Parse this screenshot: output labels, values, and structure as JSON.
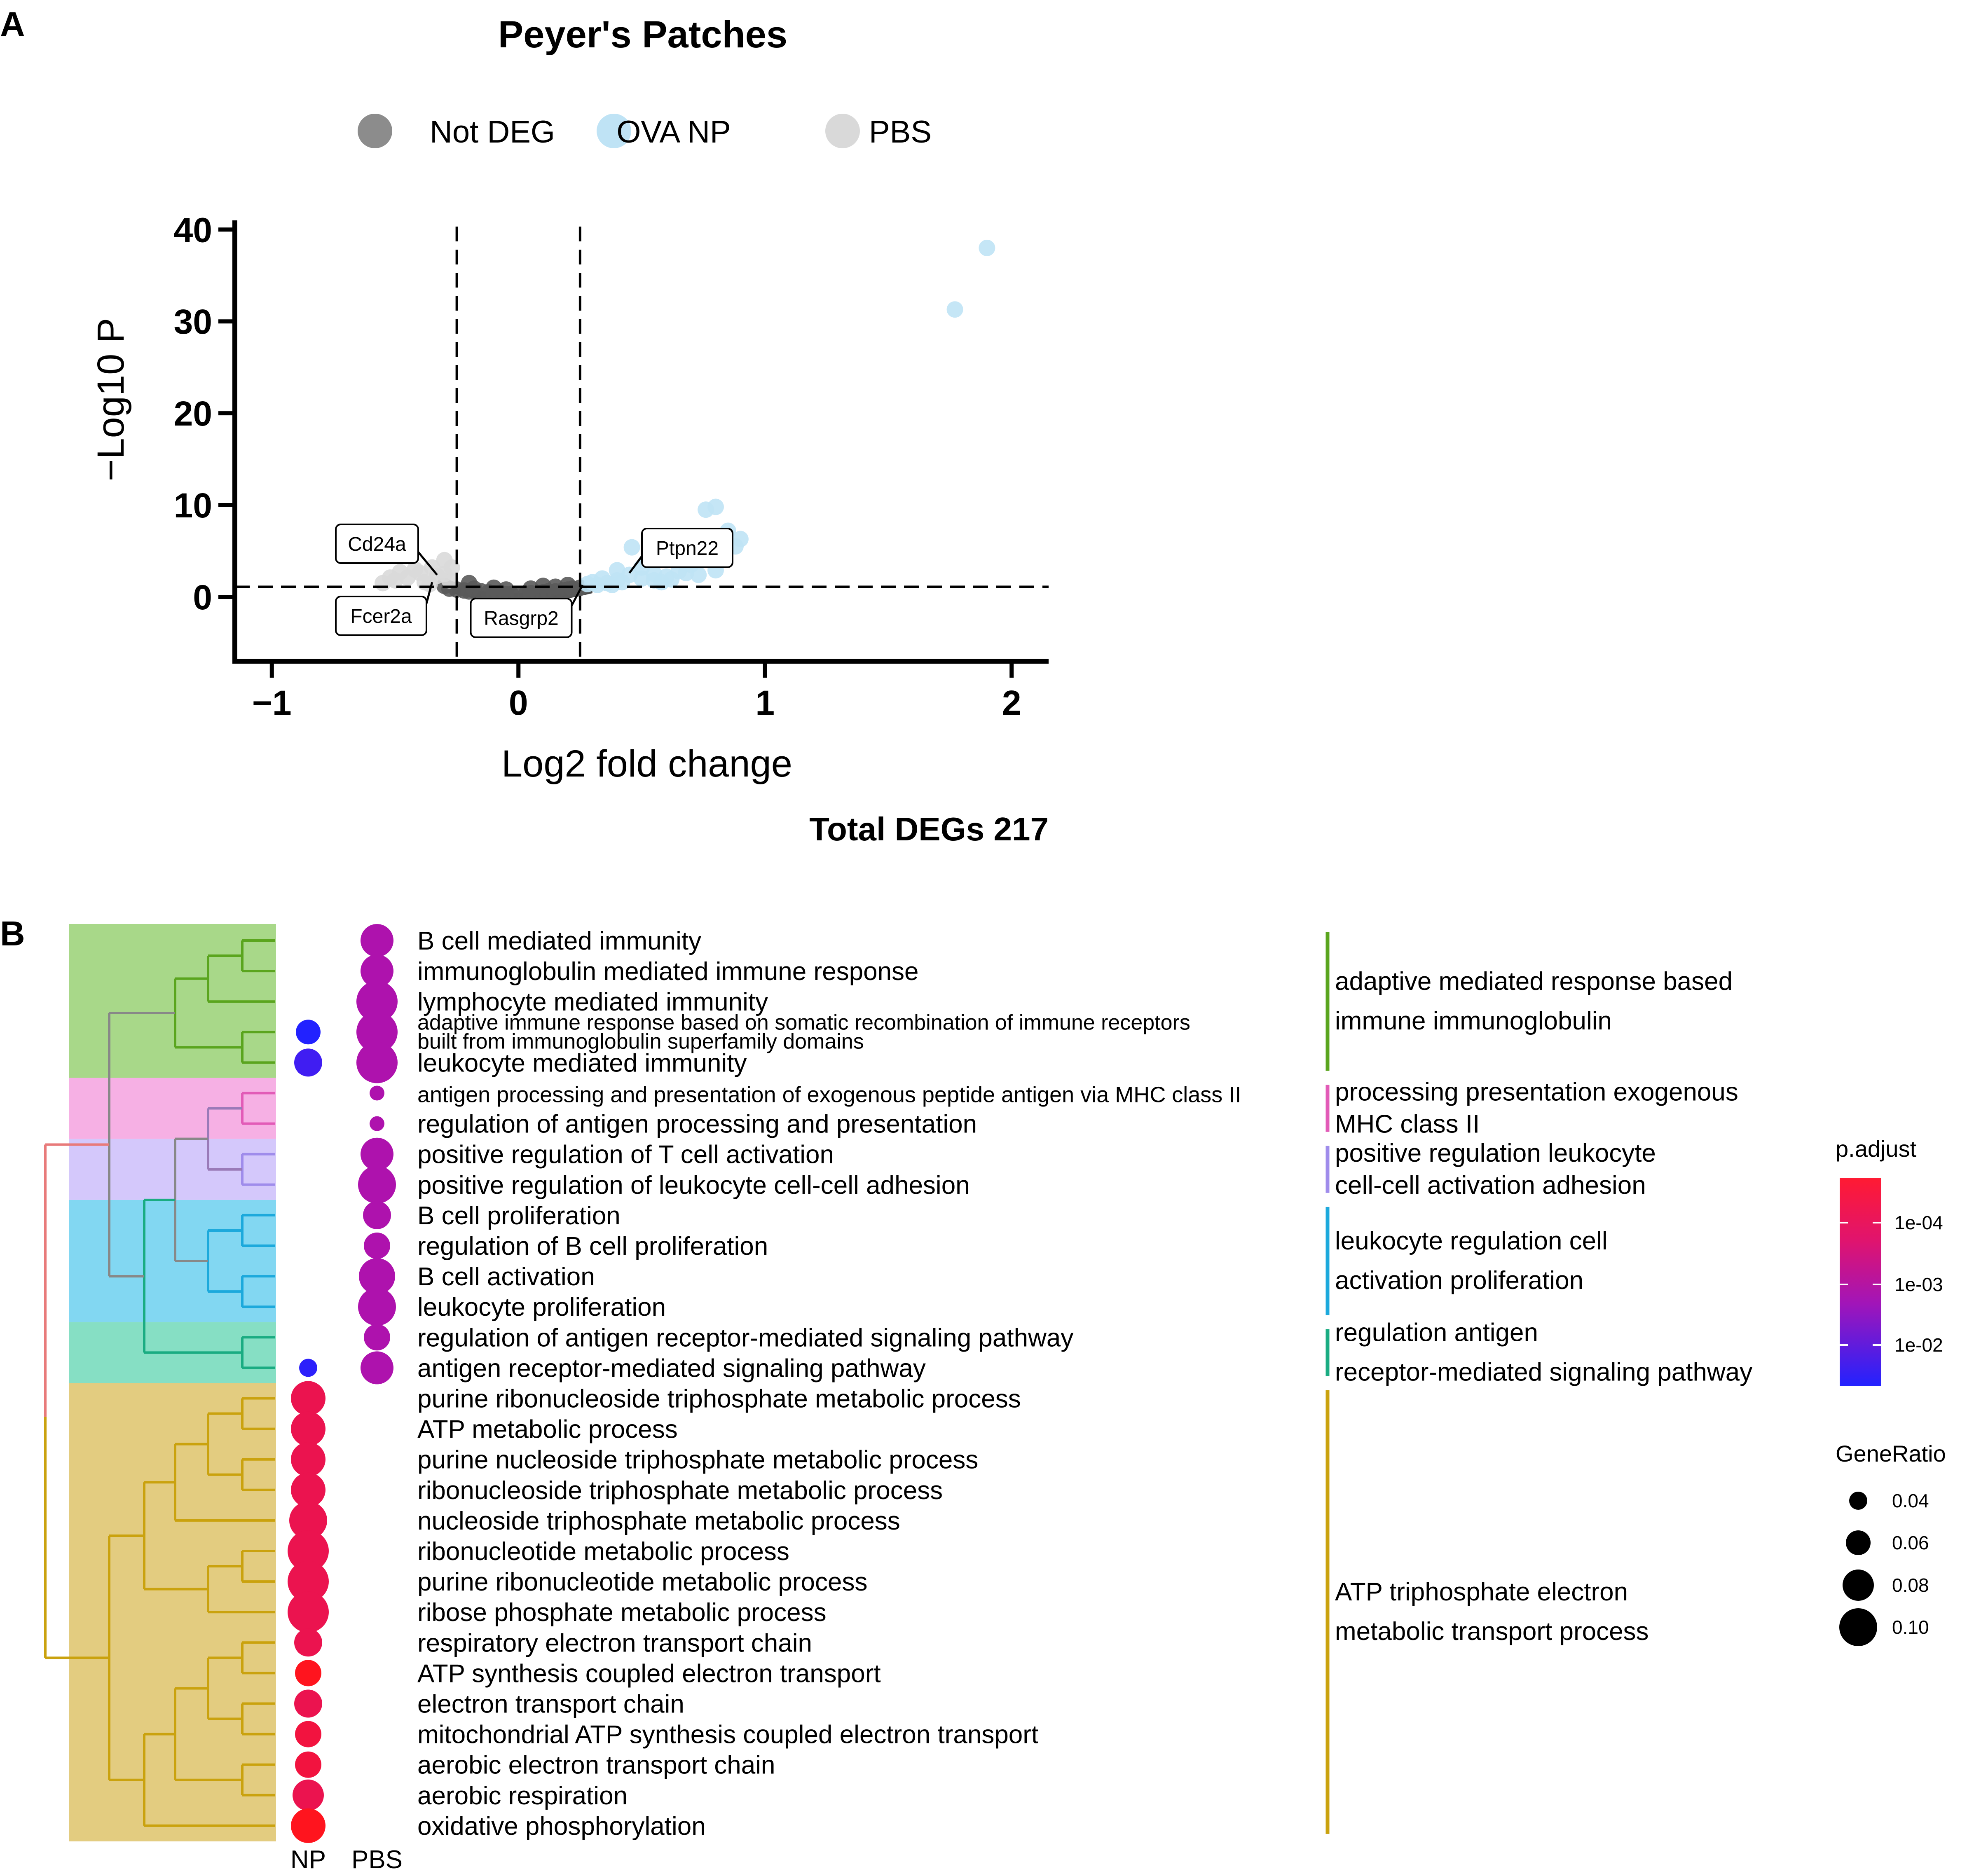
{
  "panel_a": {
    "label": "A",
    "title": "Peyer's Patches",
    "total_degs": "Total DEGs 217",
    "legend": [
      {
        "name": "Not DEG",
        "color": "#8c8c8c"
      },
      {
        "name": "OVA NP",
        "color": "#bfe3f5"
      },
      {
        "name": "PBS",
        "color": "#d9d9d9"
      }
    ]
  },
  "panel_b": {
    "label": "B",
    "colorbar_title": "p.adjust",
    "colorbar_ticks": [
      "1e-04",
      "1e-03",
      "1e-02"
    ],
    "size_title": "GeneRatio",
    "size_ticks": [
      "0.04",
      "0.06",
      "0.08",
      "0.10"
    ],
    "x_labels": [
      "NP",
      "PBS"
    ]
  },
  "chart_data": [
    {
      "type": "scatter",
      "title": "Peyer's Patches",
      "xlabel": "Log2 fold change",
      "ylabel": "−Log10 P",
      "xlim": [
        -1.15,
        2.15
      ],
      "ylim": [
        -7,
        41
      ],
      "xticks": [
        "−1",
        "0",
        "1",
        "2"
      ],
      "yticks": [
        "0",
        "10",
        "20",
        "30",
        "40"
      ],
      "thresholds": {
        "log2fc": [
          -0.25,
          0.25
        ],
        "neg_log10_p": 1.1
      },
      "series": [
        {
          "name": "Not DEG",
          "color": "#5a5a5a",
          "points": [
            [
              -0.3,
              1.2
            ],
            [
              -0.28,
              0.9
            ],
            [
              -0.25,
              0.8
            ],
            [
              -0.22,
              0.7
            ],
            [
              -0.2,
              0.6
            ],
            [
              -0.18,
              0.9
            ],
            [
              -0.15,
              0.6
            ],
            [
              -0.12,
              0.5
            ],
            [
              -0.1,
              0.4
            ],
            [
              -0.08,
              0.4
            ],
            [
              -0.05,
              0.3
            ],
            [
              -0.03,
              0.3
            ],
            [
              0,
              0.3
            ],
            [
              0.03,
              0.3
            ],
            [
              0.05,
              0.4
            ],
            [
              0.08,
              0.4
            ],
            [
              0.1,
              0.5
            ],
            [
              0.12,
              0.6
            ],
            [
              0.15,
              0.6
            ],
            [
              0.18,
              0.7
            ],
            [
              0.2,
              0.8
            ],
            [
              0.22,
              0.9
            ],
            [
              0.25,
              1.0
            ],
            [
              0.1,
              1.2
            ],
            [
              -0.1,
              1.0
            ],
            [
              0.05,
              0.9
            ],
            [
              -0.05,
              0.8
            ],
            [
              0.15,
              1.1
            ],
            [
              -0.2,
              1.5
            ],
            [
              0.2,
              1.3
            ]
          ]
        },
        {
          "name": "OVA NP",
          "color": "#bfe3f5",
          "points": [
            [
              1.9,
              38
            ],
            [
              1.77,
              31.3
            ],
            [
              0.9,
              6.3
            ],
            [
              0.85,
              7.2
            ],
            [
              0.8,
              9.8
            ],
            [
              0.76,
              9.5
            ],
            [
              0.88,
              5.5
            ],
            [
              0.7,
              3.5
            ],
            [
              0.65,
              2.8
            ],
            [
              0.6,
              2.2
            ],
            [
              0.55,
              2.5
            ],
            [
              0.5,
              2.0
            ],
            [
              0.45,
              2.4
            ],
            [
              0.4,
              1.8
            ],
            [
              0.36,
              1.5
            ],
            [
              0.32,
              1.3
            ],
            [
              0.3,
              1.6
            ],
            [
              0.28,
              1.4
            ],
            [
              0.46,
              5.4
            ],
            [
              0.5,
              3.2
            ],
            [
              0.4,
              2.9
            ],
            [
              0.42,
              1.6
            ],
            [
              0.58,
              1.6
            ],
            [
              0.62,
              1.9
            ],
            [
              0.68,
              2.6
            ],
            [
              0.73,
              2.4
            ],
            [
              0.8,
              2.9
            ],
            [
              0.34,
              2.0
            ],
            [
              0.38,
              1.3
            ],
            [
              0.55,
              1.8
            ]
          ]
        },
        {
          "name": "PBS",
          "color": "#d9d9d9",
          "points": [
            [
              -0.3,
              4.0
            ],
            [
              -0.35,
              3.2
            ],
            [
              -0.4,
              2.6
            ],
            [
              -0.45,
              2.1
            ],
            [
              -0.5,
              1.8
            ],
            [
              -0.55,
              1.5
            ],
            [
              -0.33,
              2.3
            ],
            [
              -0.38,
              1.6
            ],
            [
              -0.28,
              1.8
            ],
            [
              -0.48,
              2.7
            ],
            [
              -0.42,
              3.0
            ],
            [
              -0.3,
              2.5
            ],
            [
              -0.27,
              3.2
            ],
            [
              -0.52,
              2.1
            ],
            [
              -0.36,
              1.4
            ]
          ]
        }
      ],
      "annotations": [
        {
          "label": "Cd24a",
          "x": -0.33,
          "y": 2.4
        },
        {
          "label": "Fcer2a",
          "x": -0.35,
          "y": 1.6
        },
        {
          "label": "Rasgrp2",
          "x": 0.26,
          "y": 1.3
        },
        {
          "label": "Ptpn22",
          "x": 0.45,
          "y": 2.6
        }
      ]
    },
    {
      "type": "dot",
      "x": [
        "NP",
        "PBS"
      ],
      "size_legend_title": "GeneRatio",
      "color_legend_title": "p.adjust",
      "terms": [
        {
          "term": "B cell mediated immunity",
          "PBS": {
            "ratio": 0.085,
            "logp": 3.0
          }
        },
        {
          "term": "immunoglobulin mediated immune response",
          "PBS": {
            "ratio": 0.085,
            "logp": 3.0
          }
        },
        {
          "term": "lymphocyte mediated immunity",
          "PBS": {
            "ratio": 0.11,
            "logp": 3.0
          }
        },
        {
          "term": "adaptive immune response based on somatic recombination of immune receptors built from immunoglobulin superfamily domains",
          "NP": {
            "ratio": 0.06,
            "logp": 1.7
          },
          "PBS": {
            "ratio": 0.11,
            "logp": 3.0
          }
        },
        {
          "term": "leukocyte mediated immunity",
          "NP": {
            "ratio": 0.07,
            "logp": 2.0
          },
          "PBS": {
            "ratio": 0.11,
            "logp": 3.0
          }
        },
        {
          "term": "antigen processing and presentation of exogenous peptide antigen via MHC class II",
          "PBS": {
            "ratio": 0.03,
            "logp": 3.0
          }
        },
        {
          "term": "regulation of antigen processing and presentation",
          "PBS": {
            "ratio": 0.03,
            "logp": 3.0
          }
        },
        {
          "term": "positive regulation of T cell activation",
          "PBS": {
            "ratio": 0.085,
            "logp": 3.0
          }
        },
        {
          "term": "positive regulation of leukocyte cell-cell adhesion",
          "PBS": {
            "ratio": 0.1,
            "logp": 3.0
          }
        },
        {
          "term": "B cell proliferation",
          "PBS": {
            "ratio": 0.07,
            "logp": 3.0
          }
        },
        {
          "term": "regulation of B cell proliferation",
          "PBS": {
            "ratio": 0.065,
            "logp": 3.0
          }
        },
        {
          "term": "B cell activation",
          "PBS": {
            "ratio": 0.095,
            "logp": 3.0
          }
        },
        {
          "term": "leukocyte proliferation",
          "PBS": {
            "ratio": 0.1,
            "logp": 3.0
          }
        },
        {
          "term": "regulation of antigen receptor-mediated signaling pathway",
          "PBS": {
            "ratio": 0.065,
            "logp": 3.0
          }
        },
        {
          "term": "antigen receptor-mediated signaling pathway",
          "NP": {
            "ratio": 0.04,
            "logp": 1.8
          },
          "PBS": {
            "ratio": 0.085,
            "logp": 3.0
          }
        },
        {
          "term": "purine ribonucleoside triphosphate metabolic process",
          "NP": {
            "ratio": 0.09,
            "logp": 4.3
          }
        },
        {
          "term": "ATP metabolic process",
          "NP": {
            "ratio": 0.09,
            "logp": 4.3
          }
        },
        {
          "term": "purine nucleoside triphosphate metabolic process",
          "NP": {
            "ratio": 0.09,
            "logp": 4.3
          }
        },
        {
          "term": "ribonucleoside triphosphate metabolic process",
          "NP": {
            "ratio": 0.09,
            "logp": 4.3
          }
        },
        {
          "term": "nucleoside triphosphate metabolic process",
          "NP": {
            "ratio": 0.1,
            "logp": 4.3
          }
        },
        {
          "term": "ribonucleotide metabolic process",
          "NP": {
            "ratio": 0.11,
            "logp": 4.3
          }
        },
        {
          "term": "purine ribonucleotide metabolic process",
          "NP": {
            "ratio": 0.11,
            "logp": 4.3
          }
        },
        {
          "term": "ribose phosphate metabolic process",
          "NP": {
            "ratio": 0.11,
            "logp": 4.3
          }
        },
        {
          "term": "respiratory electron transport chain",
          "NP": {
            "ratio": 0.07,
            "logp": 4.3
          }
        },
        {
          "term": "ATP synthesis coupled electron transport",
          "NP": {
            "ratio": 0.065,
            "logp": 4.9
          }
        },
        {
          "term": "electron transport chain",
          "NP": {
            "ratio": 0.07,
            "logp": 4.3
          }
        },
        {
          "term": "mitochondrial ATP synthesis coupled electron transport",
          "NP": {
            "ratio": 0.065,
            "logp": 4.5
          }
        },
        {
          "term": "aerobic electron transport chain",
          "NP": {
            "ratio": 0.065,
            "logp": 4.5
          }
        },
        {
          "term": "aerobic respiration",
          "NP": {
            "ratio": 0.08,
            "logp": 4.3
          }
        },
        {
          "term": "oxidative phosphorylation",
          "NP": {
            "ratio": 0.09,
            "logp": 4.9
          }
        }
      ],
      "clusters": [
        {
          "lines": [
            "adaptive mediated response based",
            "immune immunoglobulin"
          ],
          "start": 0,
          "end": 4,
          "color": "#5aa51e",
          "bg": "#a8d889"
        },
        {
          "lines": [
            "processing presentation exogenous",
            "MHC class II"
          ],
          "start": 5,
          "end": 6,
          "color": "#e25bb7",
          "bg": "#f6b0e4"
        },
        {
          "lines": [
            "positive regulation leukocyte",
            "cell-cell activation adhesion"
          ],
          "start": 7,
          "end": 8,
          "color": "#9f8ceb",
          "bg": "#d4c8fb"
        },
        {
          "lines": [
            "leukocyte regulation cell",
            "activation proliferation"
          ],
          "start": 9,
          "end": 12,
          "color": "#1ca9dc",
          "bg": "#82d7f2"
        },
        {
          "lines": [
            "regulation antigen",
            "receptor-mediated signaling pathway"
          ],
          "start": 13,
          "end": 14,
          "color": "#1aac82",
          "bg": "#86dfc4"
        },
        {
          "lines": [
            "ATP triphosphate electron",
            "metabolic transport process"
          ],
          "start": 15,
          "end": 29,
          "color": "#caa20e",
          "bg": "#e3cc80"
        }
      ]
    }
  ]
}
